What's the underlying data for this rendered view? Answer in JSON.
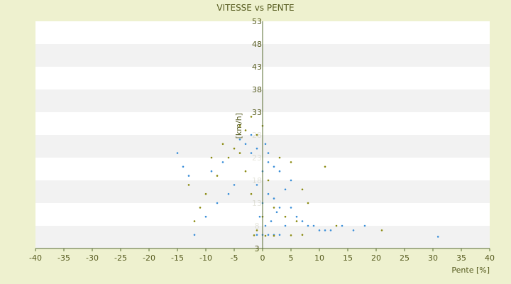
{
  "chart_data": {
    "type": "scatter",
    "title": "VITESSE vs PENTE",
    "xlabel": "Pente [%]",
    "ylabel": "[km/h]",
    "xlim": [
      -40,
      40
    ],
    "ylim": [
      3,
      53
    ],
    "x_ticks": [
      -40,
      -35,
      -30,
      -25,
      -20,
      -15,
      -10,
      -5,
      0,
      5,
      10,
      15,
      20,
      25,
      30,
      35,
      40
    ],
    "y_ticks": [
      3,
      8,
      13,
      18,
      23,
      28,
      33,
      38,
      43,
      48,
      53
    ],
    "x_tick_labels": [
      "-40",
      "-35",
      "-30",
      "-25",
      "-20",
      "-15",
      "-10",
      "-5",
      "0",
      "5",
      "10",
      "15",
      "20",
      "25",
      "30",
      "35",
      "40"
    ],
    "y_tick_labels": [
      "3",
      "8",
      "13",
      "18",
      "23",
      "28",
      "33",
      "38",
      "43",
      "48",
      "53"
    ],
    "y_tick_labels_visible": [
      "33",
      "38",
      "43",
      "48",
      "53"
    ],
    "grid": {
      "horizontal_bands": true,
      "band_colors": [
        "#ffffff",
        "#f2f2f2"
      ],
      "vertical": false
    },
    "colors": {
      "background": "#eef1cf",
      "text": "#555a1e",
      "axis": "#556b2f"
    },
    "series": [
      {
        "color": "#3a8ed8",
        "points": [
          [
            0.0,
            6.0
          ],
          [
            1.0,
            6.0
          ],
          [
            2.0,
            6.0
          ],
          [
            -1.0,
            6.0
          ],
          [
            3.0,
            6.0
          ],
          [
            0.5,
            8.0
          ],
          [
            1.5,
            9.0
          ],
          [
            -0.5,
            10.0
          ],
          [
            2.5,
            11.0
          ],
          [
            4.0,
            8.0
          ],
          [
            0.0,
            13.0
          ],
          [
            1.0,
            15.0
          ],
          [
            -1.0,
            17.0
          ],
          [
            2.0,
            14.0
          ],
          [
            3.0,
            12.0
          ],
          [
            0.0,
            20.0
          ],
          [
            1.0,
            22.0
          ],
          [
            -2.0,
            24.0
          ],
          [
            -1.0,
            25.0
          ],
          [
            0.5,
            26.0
          ],
          [
            -3.0,
            26.0
          ],
          [
            -2.0,
            28.0
          ],
          [
            -4.0,
            27.0
          ],
          [
            1.0,
            24.0
          ],
          [
            2.0,
            21.0
          ],
          [
            5.0,
            12.0
          ],
          [
            6.0,
            10.0
          ],
          [
            7.0,
            9.0
          ],
          [
            8.0,
            8.0
          ],
          [
            9.0,
            8.0
          ],
          [
            10.0,
            7.0
          ],
          [
            11.0,
            7.0
          ],
          [
            12.0,
            7.0
          ],
          [
            14.0,
            8.0
          ],
          [
            16.0,
            7.0
          ],
          [
            18.0,
            8.0
          ],
          [
            30.9,
            5.6
          ],
          [
            -5.0,
            17.0
          ],
          [
            -6.0,
            15.0
          ],
          [
            -8.0,
            13.0
          ],
          [
            -10.0,
            10.0
          ],
          [
            -12.0,
            6.0
          ],
          [
            -13.0,
            19.0
          ],
          [
            -14.0,
            21.0
          ],
          [
            -15.0,
            24.0
          ],
          [
            -7.0,
            22.0
          ],
          [
            -9.0,
            20.0
          ],
          [
            4.0,
            16.0
          ],
          [
            5.0,
            18.0
          ],
          [
            3.0,
            20.0
          ]
        ]
      },
      {
        "color": "#8a8a10",
        "points": [
          [
            -1.0,
            7.0
          ],
          [
            0.0,
            10.0
          ],
          [
            -2.0,
            15.0
          ],
          [
            1.0,
            18.0
          ],
          [
            -3.0,
            20.0
          ],
          [
            -4.0,
            24.0
          ],
          [
            -5.0,
            25.0
          ],
          [
            -3.0,
            29.0
          ],
          [
            -4.0,
            30.0
          ],
          [
            0.0,
            30.0
          ],
          [
            -6.0,
            23.0
          ],
          [
            -8.0,
            19.0
          ],
          [
            -10.0,
            15.0
          ],
          [
            -11.0,
            12.0
          ],
          [
            -12.0,
            9.0
          ],
          [
            2.0,
            12.0
          ],
          [
            4.0,
            10.0
          ],
          [
            6.0,
            9.0
          ],
          [
            3.0,
            23.0
          ],
          [
            5.0,
            22.0
          ],
          [
            7.0,
            16.0
          ],
          [
            8.0,
            13.0
          ],
          [
            11.0,
            21.0
          ],
          [
            13.0,
            8.0
          ],
          [
            21.0,
            7.0
          ],
          [
            -13.0,
            17.0
          ],
          [
            -9.0,
            23.0
          ],
          [
            -7.0,
            26.0
          ],
          [
            -2.0,
            32.0
          ],
          [
            -1.0,
            28.0
          ],
          [
            0.5,
            5.8
          ],
          [
            2.0,
            5.8
          ],
          [
            -1.5,
            5.9
          ],
          [
            5.0,
            5.9
          ],
          [
            7.0,
            6.0
          ]
        ]
      }
    ]
  }
}
